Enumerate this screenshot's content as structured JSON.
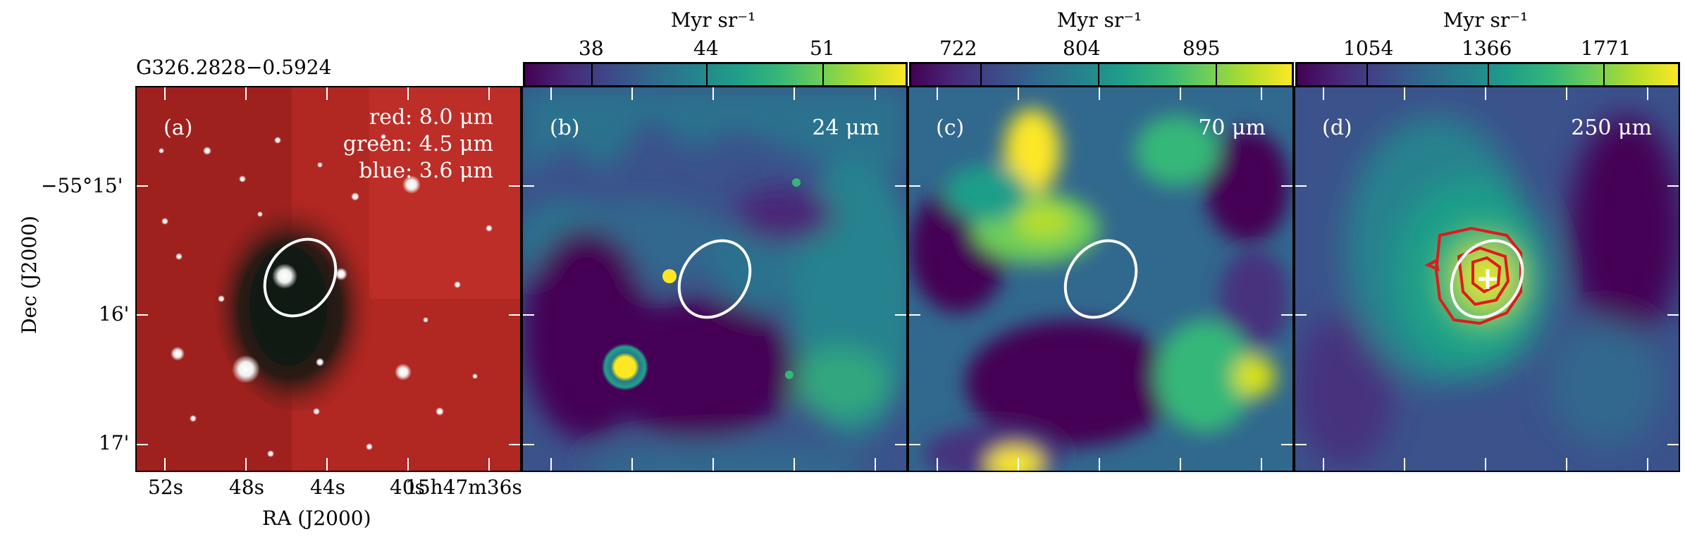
{
  "figure": {
    "source_name": "G326.2828−0.5924",
    "panels": [
      {
        "label": "(a)",
        "info_lines": [
          "red: 8.0 μm",
          "green: 4.5 μm",
          "blue: 3.6 μm"
        ]
      },
      {
        "label": "(b)",
        "info_lines": [
          "24 μm"
        ]
      },
      {
        "label": "(c)",
        "info_lines": [
          "70 μm"
        ]
      },
      {
        "label": "(d)",
        "info_lines": [
          "250 μm"
        ]
      }
    ],
    "colorbars": [
      {
        "unit": "Myr sr⁻¹",
        "ticks": [
          "38",
          "44",
          "51"
        ]
      },
      {
        "unit": "Myr sr⁻¹",
        "ticks": [
          "722",
          "804",
          "895"
        ]
      },
      {
        "unit": "Myr sr⁻¹",
        "ticks": [
          "1054",
          "1366",
          "1771"
        ]
      }
    ],
    "axes": {
      "ylabel": "Dec (J2000)",
      "xlabel": "RA (J2000)",
      "yticks": [
        "−55°15'",
        "16'",
        "17'"
      ],
      "xticks": [
        "52s",
        "48s",
        "44s",
        "40s",
        "15h47m36s"
      ]
    },
    "colors": {
      "ellipse": "#ffffff",
      "contour": "#e01a1a",
      "colormap": "viridis"
    }
  }
}
